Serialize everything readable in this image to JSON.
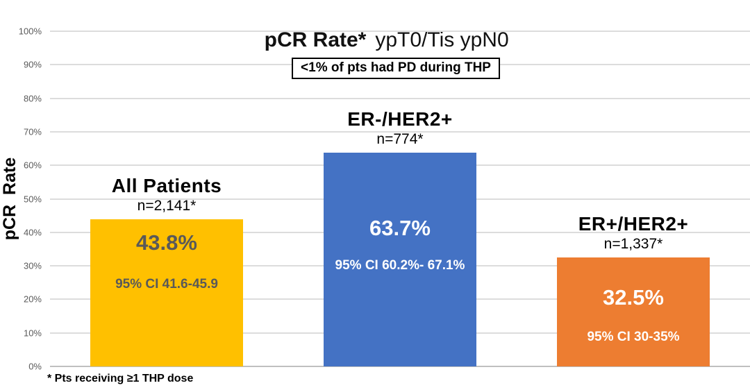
{
  "title": {
    "bold": "pCR Rate*",
    "rest": "ypT0/Tis ypN0"
  },
  "annotation_box": "<1% of pts had PD during THP",
  "footnote": "* Pts receiving ≥1 THP dose",
  "chart_data": {
    "type": "bar",
    "title": "pCR Rate* ypT0/Tis ypN0",
    "xlabel": "",
    "ylabel": "pCR  Rate",
    "ylim": [
      0,
      100
    ],
    "grid": "horizontal",
    "legend": "none",
    "yticks": [
      "0%",
      "10%",
      "20%",
      "30%",
      "40%",
      "50%",
      "60%",
      "70%",
      "80%",
      "90%",
      "100%"
    ],
    "categories": [
      "All Patients",
      "ER-/HER2+",
      "ER+/HER2+"
    ],
    "values": [
      43.8,
      63.7,
      32.5
    ],
    "bars": [
      {
        "label": "All Patients",
        "n": "n=2,141*",
        "value": 43.8,
        "value_label": "43.8%",
        "ci": "95% CI 41.6-45.9",
        "color": "#FFC000",
        "text_color": "#595959"
      },
      {
        "label": "ER-/HER2+",
        "n": "n=774*",
        "value": 63.7,
        "value_label": "63.7%",
        "ci": "95% CI 60.2%- 67.1%",
        "color": "#4472C4",
        "text_color": "#FFFFFF"
      },
      {
        "label": "ER+/HER2+",
        "n": "n=1,337*",
        "value": 32.5,
        "value_label": "32.5%",
        "ci": "95% CI 30-35%",
        "color": "#ED7D31",
        "text_color": "#FFFFFF"
      }
    ],
    "annotation": "<1% of pts had PD during THP",
    "footnote": "* Pts receiving ≥1 THP dose",
    "gridline_color": "#DCDCDC",
    "tick_label_color": "#595959"
  }
}
